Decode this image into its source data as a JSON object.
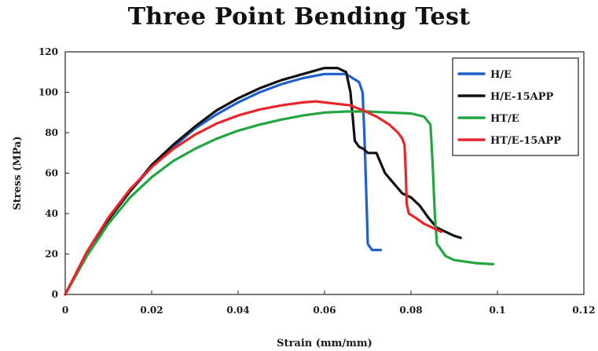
{
  "chart_data": {
    "type": "line",
    "title": "Three Point Bending Test",
    "xlabel": "Strain (mm/mm)",
    "ylabel": "Stress (MPa)",
    "xlim": [
      0,
      0.12
    ],
    "ylim": [
      0,
      120
    ],
    "xticks": [
      0,
      0.02,
      0.04,
      0.06,
      0.08,
      0.1,
      0.12
    ],
    "xtick_labels": [
      "0",
      "0.02",
      "0.04",
      "0.06",
      "0.08",
      "0.1",
      "0.12"
    ],
    "yticks": [
      0,
      20,
      40,
      60,
      80,
      100,
      120
    ],
    "ytick_labels": [
      "0",
      "20",
      "40",
      "60",
      "80",
      "100",
      "120"
    ],
    "grid": false,
    "legend_position": "top-right",
    "series": [
      {
        "name": "H/E",
        "color": "#1f5fd0",
        "points": [
          [
            0,
            0
          ],
          [
            0.005,
            20
          ],
          [
            0.01,
            37
          ],
          [
            0.015,
            51
          ],
          [
            0.02,
            63
          ],
          [
            0.025,
            73
          ],
          [
            0.03,
            82
          ],
          [
            0.035,
            89
          ],
          [
            0.04,
            95
          ],
          [
            0.045,
            100
          ],
          [
            0.05,
            104
          ],
          [
            0.055,
            107
          ],
          [
            0.06,
            109
          ],
          [
            0.065,
            109
          ],
          [
            0.068,
            105
          ],
          [
            0.0688,
            100
          ],
          [
            0.0692,
            80
          ],
          [
            0.0695,
            60
          ],
          [
            0.0698,
            40
          ],
          [
            0.07,
            25
          ],
          [
            0.071,
            22
          ],
          [
            0.073,
            22
          ]
        ]
      },
      {
        "name": "H/E-15APP",
        "color": "#111111",
        "points": [
          [
            0,
            0
          ],
          [
            0.005,
            20
          ],
          [
            0.01,
            37
          ],
          [
            0.015,
            51
          ],
          [
            0.02,
            64
          ],
          [
            0.025,
            74
          ],
          [
            0.03,
            83
          ],
          [
            0.035,
            91
          ],
          [
            0.04,
            97
          ],
          [
            0.045,
            102
          ],
          [
            0.05,
            106
          ],
          [
            0.055,
            109
          ],
          [
            0.06,
            112
          ],
          [
            0.063,
            112
          ],
          [
            0.065,
            110
          ],
          [
            0.066,
            100
          ],
          [
            0.0665,
            88
          ],
          [
            0.067,
            76
          ],
          [
            0.068,
            73
          ],
          [
            0.069,
            72
          ],
          [
            0.07,
            70
          ],
          [
            0.072,
            70
          ],
          [
            0.073,
            65
          ],
          [
            0.074,
            60
          ],
          [
            0.076,
            55
          ],
          [
            0.078,
            50
          ],
          [
            0.08,
            48
          ],
          [
            0.082,
            44
          ],
          [
            0.084,
            38
          ],
          [
            0.086,
            33
          ],
          [
            0.088,
            31
          ],
          [
            0.09,
            29
          ],
          [
            0.0915,
            28
          ]
        ]
      },
      {
        "name": "HT/E",
        "color": "#22a640",
        "points": [
          [
            0,
            0
          ],
          [
            0.005,
            19
          ],
          [
            0.01,
            35
          ],
          [
            0.015,
            48
          ],
          [
            0.02,
            58
          ],
          [
            0.025,
            66
          ],
          [
            0.03,
            72
          ],
          [
            0.035,
            77
          ],
          [
            0.04,
            81
          ],
          [
            0.045,
            84
          ],
          [
            0.05,
            86.5
          ],
          [
            0.055,
            88.5
          ],
          [
            0.06,
            90
          ],
          [
            0.065,
            90.5
          ],
          [
            0.07,
            90.5
          ],
          [
            0.075,
            90
          ],
          [
            0.08,
            89.5
          ],
          [
            0.083,
            88
          ],
          [
            0.0845,
            84
          ],
          [
            0.085,
            65
          ],
          [
            0.0855,
            40
          ],
          [
            0.086,
            25
          ],
          [
            0.088,
            19
          ],
          [
            0.09,
            17
          ],
          [
            0.095,
            15.5
          ],
          [
            0.099,
            15
          ]
        ]
      },
      {
        "name": "HT/E-15APP",
        "color": "#e8252a",
        "points": [
          [
            0,
            0
          ],
          [
            0.005,
            21
          ],
          [
            0.01,
            38
          ],
          [
            0.015,
            52
          ],
          [
            0.02,
            63
          ],
          [
            0.025,
            72
          ],
          [
            0.03,
            79
          ],
          [
            0.035,
            84.5
          ],
          [
            0.04,
            88.5
          ],
          [
            0.045,
            91.5
          ],
          [
            0.05,
            93.5
          ],
          [
            0.055,
            95
          ],
          [
            0.058,
            95.5
          ],
          [
            0.062,
            94.5
          ],
          [
            0.066,
            93.5
          ],
          [
            0.069,
            91
          ],
          [
            0.072,
            88
          ],
          [
            0.075,
            84
          ],
          [
            0.077,
            80
          ],
          [
            0.078,
            77
          ],
          [
            0.0785,
            74
          ],
          [
            0.0788,
            60
          ],
          [
            0.079,
            45
          ],
          [
            0.0795,
            40
          ],
          [
            0.081,
            38
          ],
          [
            0.083,
            35
          ],
          [
            0.085,
            33
          ],
          [
            0.087,
            31
          ]
        ]
      }
    ]
  }
}
